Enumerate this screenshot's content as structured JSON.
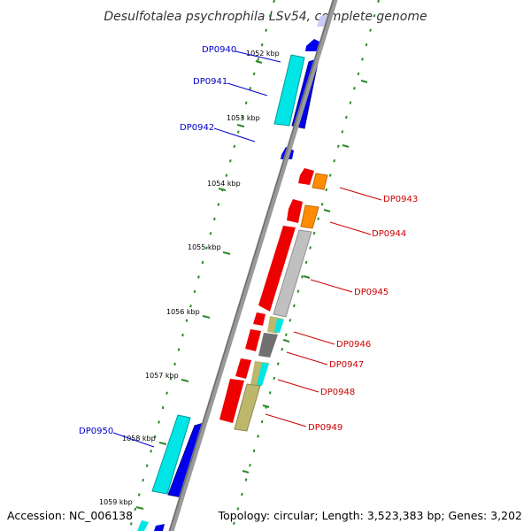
{
  "title": "Desulfotalea psychrophila LSv54, complete genome",
  "footer": {
    "accession": "Accession: NC_006138",
    "topology": "Topology: circular; Length: 3,523,383 bp; Genes: 3,202"
  },
  "colors": {
    "backbone": "#8a8a8a",
    "tick": "#2a8a2a",
    "forward_label": "#0000cc",
    "reverse_label": "#cc0000"
  },
  "ticks": [
    {
      "label": "1052 kbp",
      "kbp": 1052
    },
    {
      "label": "1053 kbp",
      "kbp": 1053
    },
    {
      "label": "1054 kbp",
      "kbp": 1054
    },
    {
      "label": "1055 kbp",
      "kbp": 1055
    },
    {
      "label": "1056 kbp",
      "kbp": 1056
    },
    {
      "label": "1057 kbp",
      "kbp": 1057
    },
    {
      "label": "1058 kbp",
      "kbp": 1058
    },
    {
      "label": "1059 kbp",
      "kbp": 1059
    }
  ],
  "forward_labels": [
    "DP0940",
    "DP0941",
    "DP0942",
    "DP0950"
  ],
  "reverse_labels": [
    "DP0943",
    "DP0944",
    "DP0945",
    "DP0946",
    "DP0947",
    "DP0948",
    "DP0949"
  ]
}
